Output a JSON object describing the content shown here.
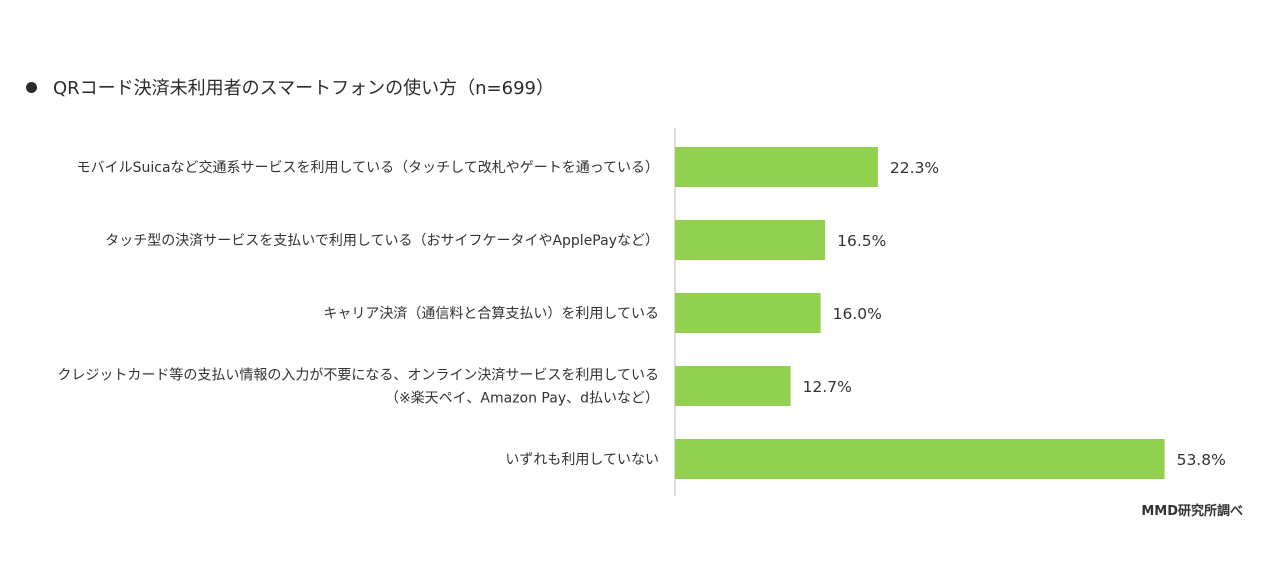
{
  "title_bullet": "●",
  "title": "QRコード決済未利用者のスマートフォンの使い方（n=699）",
  "source": "MMD研究所調べ",
  "chart_data": {
    "type": "bar",
    "orientation": "horizontal",
    "title": "QRコード決済未利用者のスマートフォンの使い方（n=699）",
    "categories": [
      [
        "モバイルSuicaなど交通系サービスを利用している（タッチして改札やゲートを通っている）"
      ],
      [
        "タッチ型の決済サービスを支払いで利用している（おサイフケータイやApplePayなど）"
      ],
      [
        "キャリア決済（通信料と合算支払い）を利用している"
      ],
      [
        "クレジットカード等の支払い情報の入力が不要になる、オンライン決済サービスを利用している",
        "（※楽天ペイ、Amazon Pay、d払いなど）"
      ],
      [
        "いずれも利用していない"
      ]
    ],
    "values": [
      22.3,
      16.5,
      16.0,
      12.7,
      53.8
    ],
    "value_labels": [
      "22.3%",
      "16.5%",
      "16.0%",
      "12.7%",
      "53.8%"
    ],
    "unit": "%",
    "bar_color": "#92d050",
    "axis_color": "#d0d0d0",
    "grid": false,
    "legend": false
  }
}
